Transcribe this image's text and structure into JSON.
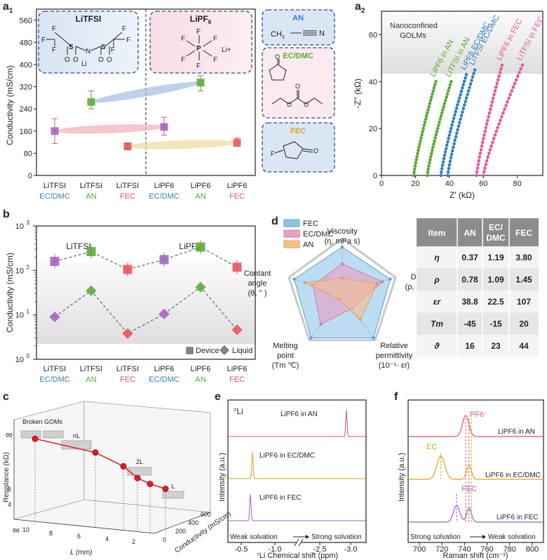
{
  "colors": {
    "blue": "#2f7fc1",
    "green": "#5aa832",
    "red": "#e8505b",
    "purple": "#a05fbf",
    "orange": "#e0a020",
    "pink": "#e4579a",
    "gray": "#555555",
    "panel_border": "#2e4a8a"
  },
  "panel_a1": {
    "label": "a",
    "label_sub": "1",
    "chart_ylabel": "Conductivity (mS/cm)",
    "salt_left": "LiTFSI",
    "salt_right_base": "LiPF",
    "salt_right_sub": "6",
    "solvent_an": "AN",
    "solvent_an_formula_left": "CH",
    "solvent_an_formula_sub": "3",
    "solvent_ecdmc": "EC/DMC",
    "solvent_fec": "FEC",
    "mol_li": "Li",
    "mol_li_plus": "Li+",
    "mol_f": "F",
    "mol_s": "S",
    "mol_o": "O",
    "mol_n": "N",
    "mol_p": "P"
  },
  "panel_a2": {
    "label": "a",
    "label_sub": "2",
    "annotation_line1": "Nanoconfined",
    "annotation_line2": "GOLMs",
    "curve_labels": [
      "LiPF6 in AN",
      "LiTFSI in AN",
      "LiPF6 EC/DMC",
      "LiTFSI EC/DMC",
      "LiPF6 in FEC",
      "LiTFSI in FEC"
    ]
  },
  "panel_b": {
    "label": "b",
    "group_left": "LiTFSI",
    "group_right": "LiPF6",
    "legend_device": "Device",
    "legend_liquid": "Liquid"
  },
  "panel_c": {
    "label": "c",
    "annotation_broken": "Broken GOMs",
    "annotation_nl": "nL",
    "annotation_2l": "2L",
    "annotation_l": "L",
    "zlabel": "Resistance (kΩ)",
    "infinity": "∞",
    "xlabel": "L (mm)",
    "conductivity_label": "Conductivity (mS/cm)",
    "x_ticks": [
      "10",
      "8",
      "6",
      "4",
      "2"
    ],
    "c_ticks": [
      "0",
      "200",
      "400",
      "600"
    ],
    "z_ticks": [
      "0",
      "4",
      "8"
    ]
  },
  "panel_d": {
    "label": "d",
    "legend": [
      "FEC",
      "EC/DMC",
      "AN"
    ],
    "axis_viscosity": [
      "Viscosity",
      "(η, mPa s)"
    ],
    "axis_density": [
      "Density",
      "(ρ, g cm⁻³)"
    ],
    "axis_permittivity": [
      "Relative",
      "permittivity",
      "(10⁻¹· εr)"
    ],
    "axis_melting": [
      "Melting",
      "point",
      "(Tm ℃)"
    ],
    "axis_contact": [
      "Contant",
      "angle",
      "(θ, ° )"
    ],
    "table": {
      "headers": [
        "Item",
        "AN",
        "EC/ DMC",
        "FEC"
      ],
      "rows": [
        [
          "η",
          "0.37",
          "1.19",
          "3.80"
        ],
        [
          "ρ",
          "0.78",
          "1.09",
          "1.45"
        ],
        [
          "εr",
          "38.8",
          "22.5",
          "107"
        ],
        [
          "Tm",
          "-45",
          "-15",
          "20"
        ],
        [
          "ϑ",
          "16",
          "23",
          "44"
        ]
      ]
    }
  },
  "panel_e": {
    "label": "e",
    "nucleus": "⁷Li",
    "trace_an": "LiPF6 in AN",
    "trace_ecdmc": "LiPF6 in EC/DMC",
    "trace_fec": "LiPF6 in FEC",
    "arrow_left": "Weak solvation",
    "arrow_right": "Strong solvation"
  },
  "panel_f": {
    "label": "f",
    "pf6_label": "PF6⁻",
    "ec_label": "EC",
    "fec_label": "FEC",
    "trace_an": "LiPF6 in AN",
    "trace_ecdmc": "LiPF6 in EC/DMC",
    "trace_fec": "LiPF6 in FEC",
    "arrow_left": "Strong solvation",
    "arrow_right": "Weak solvation"
  },
  "chart_data": [
    {
      "id": "a1",
      "type": "scatter",
      "title": "",
      "xlabel": "",
      "ylabel": "Conductivity (mS/cm)",
      "ylim": [
        0,
        600
      ],
      "yticks": [
        0,
        80,
        160,
        240,
        320,
        400,
        480,
        560
      ],
      "categories": [
        "LiTFSI EC/DMC",
        "LiTFSI AN",
        "LiTFSI FEC",
        "LiPF6 EC/DMC",
        "LiPF6 AN",
        "LiPF6 FEC"
      ],
      "category_line1": [
        "LiTFSI",
        "LiTFSI",
        "LiTFSI",
        "LiPF6",
        "LiPF6",
        "LiPF6"
      ],
      "category_line2": [
        "EC/DMC",
        "AN",
        "FEC",
        "EC/DMC",
        "AN",
        "FEC"
      ],
      "values": [
        160,
        265,
        105,
        175,
        335,
        118
      ],
      "err_low": [
        115,
        240,
        95,
        145,
        305,
        105
      ],
      "err_high": [
        205,
        305,
        115,
        210,
        360,
        135
      ]
    },
    {
      "id": "a2",
      "type": "line",
      "xlabel": "Z' (kΩ)",
      "ylabel": "-Z'' (kΩ)",
      "xlim": [
        0,
        95
      ],
      "ylim": [
        0,
        70
      ],
      "xticks": [
        0,
        20,
        40,
        60,
        80
      ],
      "yticks": [
        0,
        20,
        40,
        60
      ],
      "series": [
        {
          "name": "LiPF6 in AN",
          "x0": 19,
          "x1": 32,
          "ymax": 40
        },
        {
          "name": "LiTFSI in AN",
          "x0": 27,
          "x1": 41,
          "ymax": 40
        },
        {
          "name": "LiPF6 EC/DMC",
          "x0": 35,
          "x1": 50,
          "ymax": 43
        },
        {
          "name": "LiTFSI EC/DMC",
          "x0": 39,
          "x1": 55,
          "ymax": 45
        },
        {
          "name": "LiPF6 in FEC",
          "x0": 56,
          "x1": 71,
          "ymax": 47
        },
        {
          "name": "LiTFSI in FEC",
          "x0": 60,
          "x1": 83,
          "ymax": 47
        }
      ]
    },
    {
      "id": "b",
      "type": "line",
      "ylabel": "Conductivity (mS/cm)",
      "yscale": "log",
      "ylim": [
        1,
        1000
      ],
      "ytick_exps": [
        0,
        1,
        2,
        3
      ],
      "categories": [
        "LiTFSI EC/DMC",
        "LiTFSI AN",
        "LiTFSI FEC",
        "LiPF6 EC/DMC",
        "LiPF6 AN",
        "LiPF6 FEC"
      ],
      "category_line1": [
        "LiTFSI",
        "LiTFSI",
        "LiTFSI",
        "LiPF6",
        "LiPF6",
        "LiPF6"
      ],
      "category_line2": [
        "EC/DMC",
        "AN",
        "FEC",
        "EC/DMC",
        "AN",
        "FEC"
      ],
      "series": [
        {
          "name": "Device",
          "values": [
            160,
            265,
            105,
            175,
            335,
            118
          ]
        },
        {
          "name": "Liquid",
          "values": [
            9,
            35,
            3.8,
            10.5,
            42,
            4.6
          ]
        }
      ]
    },
    {
      "id": "c",
      "type": "line",
      "xlabel": "L (mm)",
      "zlabel": "Resistance (kΩ)",
      "y2label": "Conductivity (mS/cm)",
      "series": [
        {
          "name": "Resistance",
          "values": [
            8.2,
            6.8,
            5.4,
            4.2,
            3.6,
            3.1
          ]
        }
      ]
    },
    {
      "id": "d",
      "type": "radar",
      "axes": [
        "Viscosity",
        "Density",
        "Relative permittivity",
        "Melting point",
        "Contact angle"
      ],
      "series": [
        {
          "name": "FEC",
          "values": [
            0.85,
            0.9,
            0.95,
            0.95,
            0.9
          ]
        },
        {
          "name": "EC/DMC",
          "values": [
            0.55,
            0.75,
            0.3,
            0.65,
            0.55
          ]
        },
        {
          "name": "AN",
          "values": [
            0.3,
            0.65,
            0.55,
            0.1,
            0.7
          ]
        }
      ]
    },
    {
      "id": "e",
      "type": "line",
      "xlabel": "⁷Li Chemical shift (ppm)",
      "ylabel": "Intensity (a.u.)",
      "xticks": [
        "-0.5",
        "-1.0",
        "-2.5",
        "-3.0"
      ],
      "series": [
        {
          "name": "LiPF6 in AN",
          "peak_ppm": -2.9
        },
        {
          "name": "LiPF6 in EC/DMC",
          "peak_ppm": -0.72
        },
        {
          "name": "LiPF6 in FEC",
          "peak_ppm": -0.68
        }
      ]
    },
    {
      "id": "f",
      "type": "line",
      "xlabel": "Raman shift (cm⁻¹)",
      "ylabel": "Intensity (a.u.)",
      "xlim": [
        690,
        810
      ],
      "xticks": [
        700,
        720,
        740,
        760,
        780,
        800
      ],
      "series": [
        {
          "name": "LiPF6 in AN",
          "peaks": [
            741
          ]
        },
        {
          "name": "LiPF6 in EC/DMC",
          "peaks": [
            719,
            744
          ]
        },
        {
          "name": "LiPF6 in FEC",
          "peaks": [
            733,
            744
          ]
        }
      ]
    }
  ]
}
